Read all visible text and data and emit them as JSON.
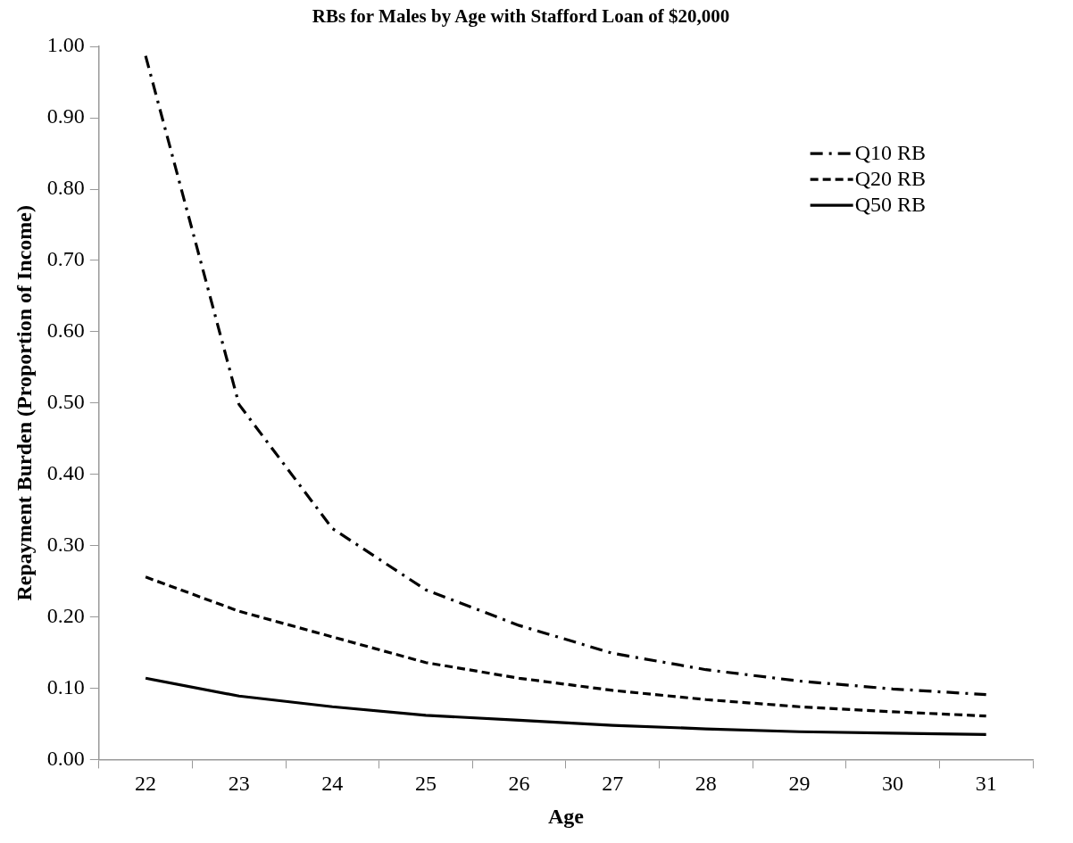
{
  "chart_data": {
    "type": "line",
    "title": "RBs for Males by Age with Stafford Loan of $20,000",
    "xlabel": "Age",
    "ylabel": "Repayment Burden (Proportion of Income)",
    "categories": [
      "22",
      "23",
      "24",
      "25",
      "26",
      "27",
      "28",
      "29",
      "30",
      "31"
    ],
    "series": [
      {
        "name": "Q10 RB",
        "color": "#000000",
        "line_style": "dashdot",
        "values": [
          0.987,
          0.498,
          0.324,
          0.238,
          0.188,
          0.149,
          0.126,
          0.11,
          0.099,
          0.091
        ]
      },
      {
        "name": "Q20 RB",
        "color": "#000000",
        "line_style": "dashed",
        "values": [
          0.256,
          0.208,
          0.172,
          0.136,
          0.114,
          0.097,
          0.084,
          0.074,
          0.067,
          0.061
        ]
      },
      {
        "name": "Q50 RB",
        "color": "#000000",
        "line_style": "solid",
        "values": [
          0.114,
          0.089,
          0.074,
          0.062,
          0.055,
          0.048,
          0.043,
          0.039,
          0.037,
          0.035
        ]
      }
    ],
    "ylim": [
      0,
      1
    ],
    "yticks": [
      {
        "value": 0,
        "label": "0.00"
      },
      {
        "value": 0.1,
        "label": "0.10"
      },
      {
        "value": 0.2,
        "label": "0.20"
      },
      {
        "value": 0.3,
        "label": "0.30"
      },
      {
        "value": 0.4,
        "label": "0.40"
      },
      {
        "value": 0.5,
        "label": "0.50"
      },
      {
        "value": 0.6,
        "label": "0.60"
      },
      {
        "value": 0.7,
        "label": "0.70"
      },
      {
        "value": 0.8,
        "label": "0.80"
      },
      {
        "value": 0.9,
        "label": "0.90"
      },
      {
        "value": 1,
        "label": "1.00"
      }
    ],
    "grid": false,
    "legend": "top right",
    "marker": "none"
  }
}
